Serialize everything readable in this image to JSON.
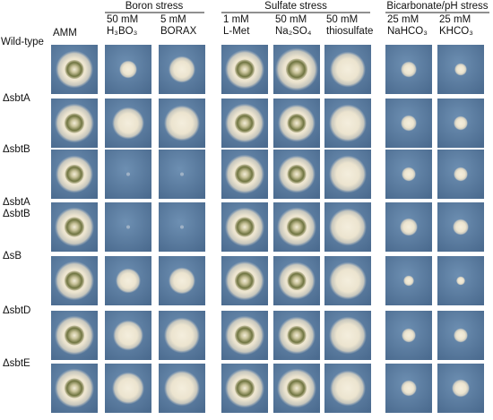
{
  "figure": {
    "groups": [
      "Boron stress",
      "Sulfate stress",
      "Bicarbonate/pH stress"
    ],
    "columns": [
      [
        "AMM"
      ],
      [
        "50 mM",
        "H₃BO₃"
      ],
      [
        "5 mM",
        "BORAX"
      ],
      [
        "1 mM",
        "L-Met"
      ],
      [
        "50 mM",
        "Na₂SO₄"
      ],
      [
        "50 mM",
        "thiosulfate"
      ],
      [
        "25 mM",
        "NaHCO₃"
      ],
      [
        "25 mM",
        "KHCO₃"
      ]
    ],
    "rows": [
      [
        "Wild-type"
      ],
      [
        "ΔsbtA"
      ],
      [
        "ΔsbtB"
      ],
      [
        "ΔsbtA",
        "ΔsbtB"
      ],
      [
        "ΔsB"
      ],
      [
        "ΔsbtD"
      ],
      [
        "ΔsbtE"
      ]
    ]
  }
}
